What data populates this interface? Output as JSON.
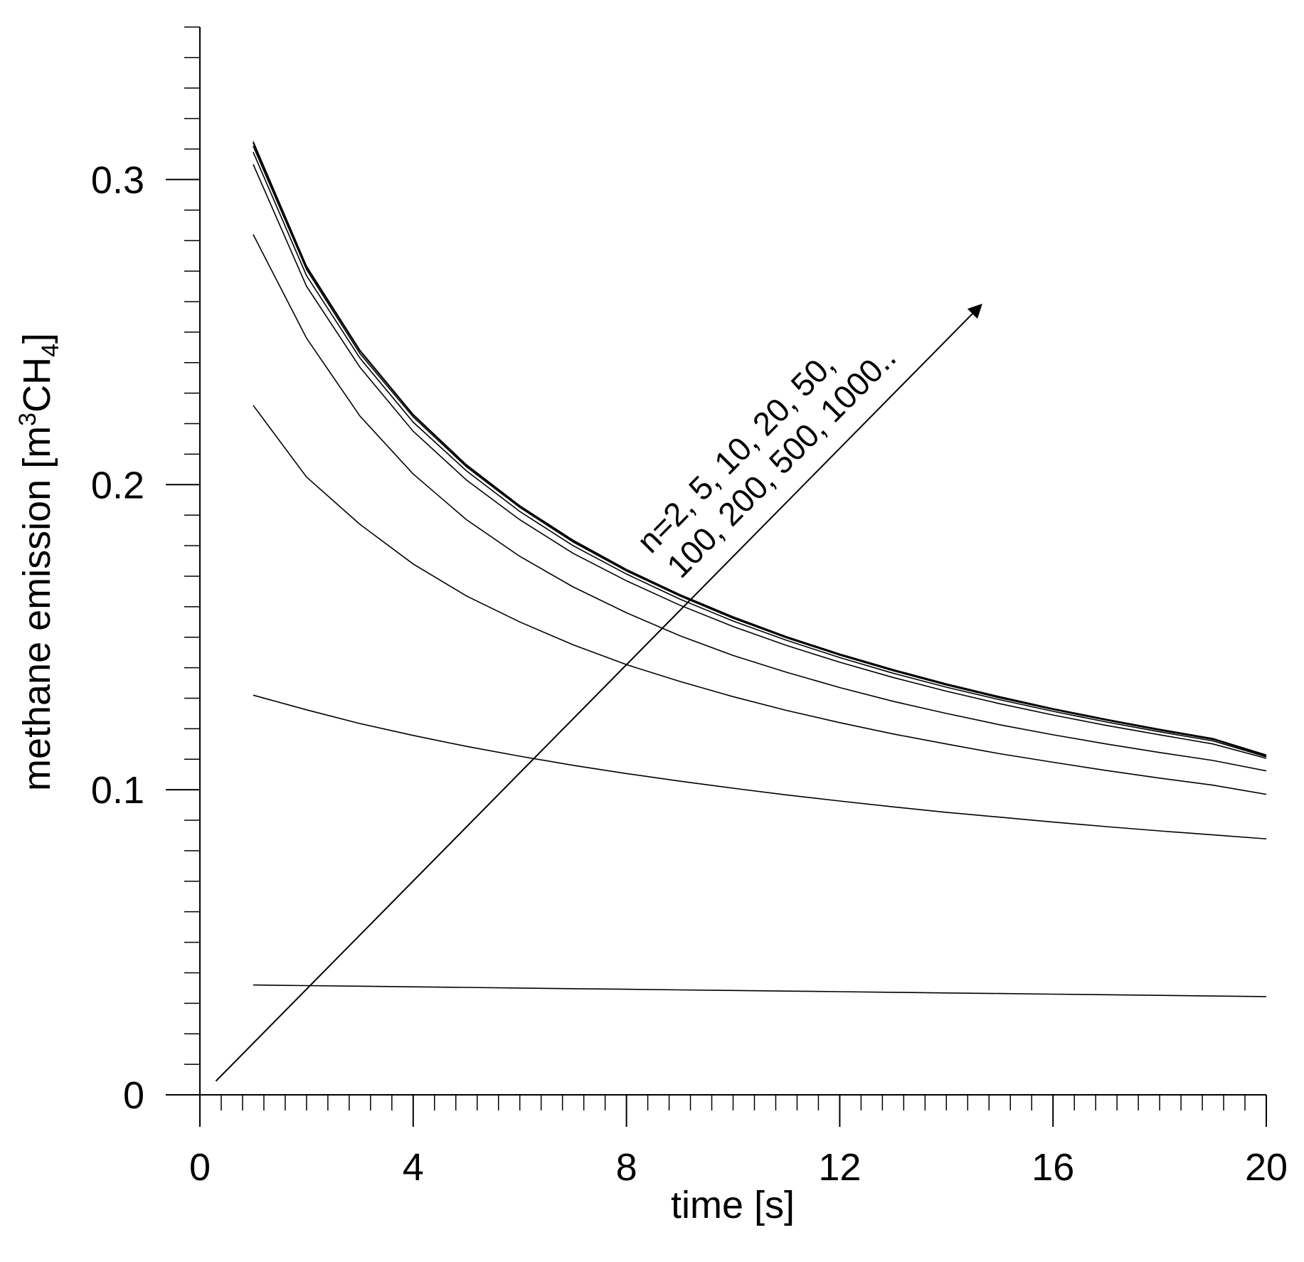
{
  "chart_data": {
    "type": "line",
    "title": "",
    "xlabel": "time [s]",
    "ylabel": {
      "prefix": "methane emission [m",
      "sup": "3",
      "mid": "CH",
      "sub": "4"
    },
    "xlim": [
      0,
      20
    ],
    "ylim": [
      0,
      0.35
    ],
    "x_ticks": [
      {
        "value": 0,
        "label": "0"
      },
      {
        "value": 4,
        "label": "4"
      },
      {
        "value": 8,
        "label": "8"
      },
      {
        "value": 12,
        "label": "12"
      },
      {
        "value": 16,
        "label": "16"
      },
      {
        "value": 20,
        "label": "20"
      }
    ],
    "x_minor_step": 0.4,
    "y_ticks": [
      {
        "value": 0,
        "label": "0"
      },
      {
        "value": 0.1,
        "label": "0.1"
      },
      {
        "value": 0.2,
        "label": "0.2"
      },
      {
        "value": 0.3,
        "label": "0.3"
      }
    ],
    "y_minor_step": 0.01,
    "grid": false,
    "x": [
      1,
      2,
      3,
      4,
      5,
      6,
      7,
      8,
      9,
      10,
      11,
      12,
      13,
      14,
      15,
      16,
      17,
      18,
      19,
      20
    ],
    "series": [
      {
        "name": "n=2",
        "values": [
          0.036,
          0.0358,
          0.0356,
          0.0354,
          0.0352,
          0.035,
          0.0348,
          0.0346,
          0.0344,
          0.0342,
          0.034,
          0.0338,
          0.0336,
          0.0334,
          0.0332,
          0.033,
          0.0328,
          0.0326,
          0.0324,
          0.0322
        ]
      },
      {
        "name": "n=5",
        "values": [
          0.131,
          0.1262,
          0.1217,
          0.1178,
          0.1142,
          0.111,
          0.108,
          0.1053,
          0.1028,
          0.1005,
          0.0983,
          0.0963,
          0.0944,
          0.0926,
          0.091,
          0.0894,
          0.0879,
          0.0865,
          0.0852,
          0.0839
        ]
      },
      {
        "name": "n=10",
        "values": [
          0.226,
          0.2025,
          0.187,
          0.174,
          0.1635,
          0.155,
          0.1475,
          0.141,
          0.1355,
          0.1305,
          0.126,
          0.122,
          0.1183,
          0.115,
          0.1118,
          0.109,
          0.1063,
          0.1038,
          0.1015,
          0.0985
        ]
      },
      {
        "name": "n=20",
        "values": [
          0.282,
          0.248,
          0.2225,
          0.2035,
          0.1885,
          0.1765,
          0.1665,
          0.158,
          0.1505,
          0.144,
          0.1385,
          0.1335,
          0.129,
          0.125,
          0.1213,
          0.118,
          0.115,
          0.1122,
          0.1096,
          0.1062
        ]
      },
      {
        "name": "n=50",
        "values": [
          0.305,
          0.265,
          0.2385,
          0.2175,
          0.2015,
          0.1885,
          0.1775,
          0.1685,
          0.1605,
          0.1535,
          0.1473,
          0.1418,
          0.1368,
          0.1323,
          0.1282,
          0.1245,
          0.1211,
          0.118,
          0.115,
          0.1103
        ]
      },
      {
        "name": "n=100",
        "values": [
          0.309,
          0.2685,
          0.2415,
          0.2205,
          0.2045,
          0.1912,
          0.18,
          0.1707,
          0.1625,
          0.1553,
          0.149,
          0.1433,
          0.1382,
          0.1336,
          0.1295,
          0.1257,
          0.1222,
          0.119,
          0.116,
          0.1108
        ]
      },
      {
        "name": "n=200",
        "values": [
          0.311,
          0.2705,
          0.243,
          0.2222,
          0.2058,
          0.1925,
          0.1812,
          0.1717,
          0.1635,
          0.1562,
          0.1498,
          0.1441,
          0.139,
          0.1343,
          0.1301,
          0.1263,
          0.1228,
          0.1195,
          0.1165,
          0.1111
        ]
      },
      {
        "name": "n=500",
        "values": [
          0.312,
          0.2712,
          0.2438,
          0.2228,
          0.2063,
          0.1929,
          0.1816,
          0.172,
          0.1638,
          0.1565,
          0.1501,
          0.1444,
          0.1392,
          0.1346,
          0.1303,
          0.1265,
          0.123,
          0.1197,
          0.1167,
          0.1113
        ]
      },
      {
        "name": "n=1000",
        "values": [
          0.3125,
          0.2716,
          0.2441,
          0.223,
          0.2065,
          0.1931,
          0.1818,
          0.1722,
          0.164,
          0.1567,
          0.1502,
          0.1445,
          0.1394,
          0.1347,
          0.1305,
          0.1266,
          0.1231,
          0.1198,
          0.1168,
          0.1114
        ]
      }
    ],
    "annotation": {
      "line1": "n=2, 5, 10, 20, 50,",
      "line2": "100, 200, 500, 1000..",
      "arrow_start": {
        "x": 0.3,
        "y": 0.0045
      },
      "arrow_end": {
        "x": 14.6,
        "y": 0.258
      }
    }
  }
}
